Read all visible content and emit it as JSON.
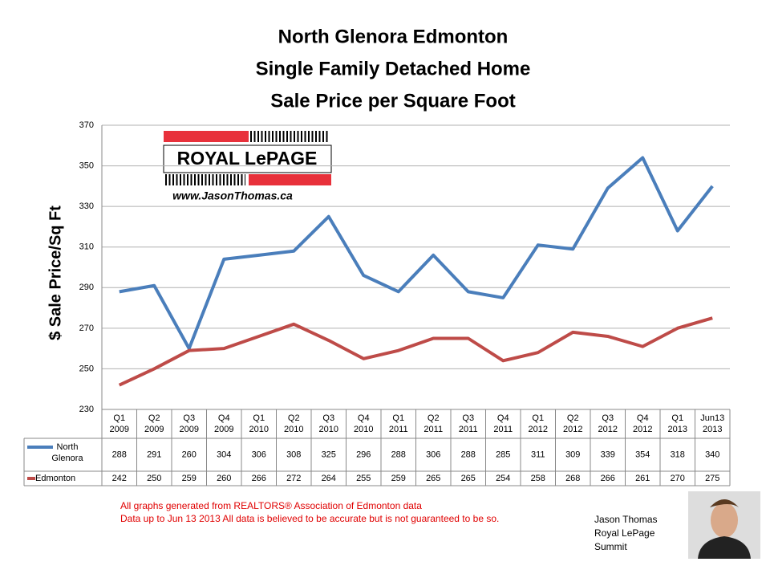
{
  "chart_data": {
    "type": "line",
    "title": [
      "North Glenora Edmonton",
      "Single Family Detached Home",
      "Sale Price per Square Foot"
    ],
    "ylabel": "$ Sale Price/Sq Ft",
    "categories": [
      [
        "Q1",
        "2009"
      ],
      [
        "Q2",
        "2009"
      ],
      [
        "Q3",
        "2009"
      ],
      [
        "Q4",
        "2009"
      ],
      [
        "Q1",
        "2010"
      ],
      [
        "Q2",
        "2010"
      ],
      [
        "Q3",
        "2010"
      ],
      [
        "Q4",
        "2010"
      ],
      [
        "Q1",
        "2011"
      ],
      [
        "Q2",
        "2011"
      ],
      [
        "Q3",
        "2011"
      ],
      [
        "Q4",
        "2011"
      ],
      [
        "Q1",
        "2012"
      ],
      [
        "Q2",
        "2012"
      ],
      [
        "Q3",
        "2012"
      ],
      [
        "Q4",
        "2012"
      ],
      [
        "Q1",
        "2013"
      ],
      [
        "Jun13",
        "2013"
      ]
    ],
    "series": [
      {
        "name": "North Glenora",
        "color": "#4a7ebb",
        "values": [
          288,
          291,
          260,
          304,
          306,
          308,
          325,
          296,
          288,
          306,
          288,
          285,
          311,
          309,
          339,
          354,
          318,
          340
        ]
      },
      {
        "name": "Edmonton",
        "color": "#be4b48",
        "values": [
          242,
          250,
          259,
          260,
          266,
          272,
          264,
          255,
          259,
          265,
          265,
          254,
          258,
          268,
          266,
          261,
          270,
          275
        ]
      }
    ],
    "ylim": [
      230,
      370
    ],
    "yticks": [
      230,
      250,
      270,
      290,
      310,
      330,
      350,
      370
    ],
    "grid": true
  },
  "logo": {
    "brand": "ROYAL LePAGE",
    "url": "www.JasonThomas.ca"
  },
  "notes": [
    "All graphs generated from REALTORS® Association of Edmonton data",
    "Data up to  Jun 13  2013  All data is believed to be accurate but is not guaranteed to be so."
  ],
  "signature": [
    "Jason Thomas",
    "Royal LePage",
    "Summit"
  ]
}
